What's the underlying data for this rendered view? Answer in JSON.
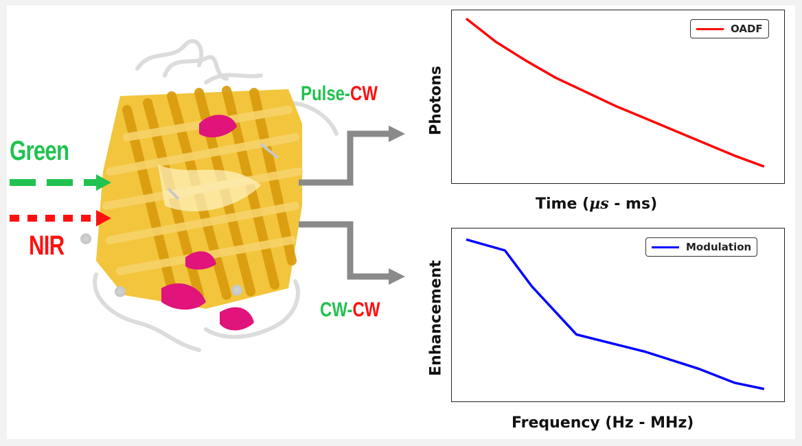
{
  "excitation": {
    "green_label": "Green",
    "nir_label": "NIR",
    "green_color": "#21c24f",
    "nir_color": "#ff1010"
  },
  "modes": {
    "top": {
      "part1": "Pulse",
      "sep": "-",
      "part2": "CW"
    },
    "bottom": {
      "part1": "CW",
      "sep": "-",
      "part2": "CW"
    }
  },
  "protein": {
    "icon": "gfp-beta-barrel-illustration",
    "barrel_color": "#e8b21c",
    "helix_color": "#e0147a"
  },
  "chart_data": [
    {
      "type": "line",
      "title": "",
      "xlabel_main": "Time (",
      "xlabel_unit": "µs",
      "xlabel_rest": " - ms)",
      "ylabel": "Photons",
      "legend": "OADF",
      "color": "#ff0000",
      "x": [
        0,
        0.1,
        0.2,
        0.3,
        0.4,
        0.5,
        0.6,
        0.7,
        0.8,
        0.9,
        1.0
      ],
      "y": [
        1.0,
        0.85,
        0.73,
        0.62,
        0.53,
        0.44,
        0.36,
        0.28,
        0.2,
        0.12,
        0.05
      ],
      "xlim": [
        0,
        1.04
      ],
      "ylim": [
        0,
        1.04
      ]
    },
    {
      "type": "line",
      "title": "",
      "xlabel": "Frequency (Hz - MHz)",
      "ylabel": "Enhancement",
      "legend": "Modulation",
      "color": "#0000ff",
      "x": [
        0,
        0.13,
        0.22,
        0.37,
        0.6,
        0.78,
        0.9,
        1.0
      ],
      "y": [
        1.0,
        0.93,
        0.7,
        0.39,
        0.28,
        0.17,
        0.08,
        0.04
      ],
      "xlim": [
        0,
        1.04
      ],
      "ylim": [
        0,
        1.04
      ]
    }
  ]
}
